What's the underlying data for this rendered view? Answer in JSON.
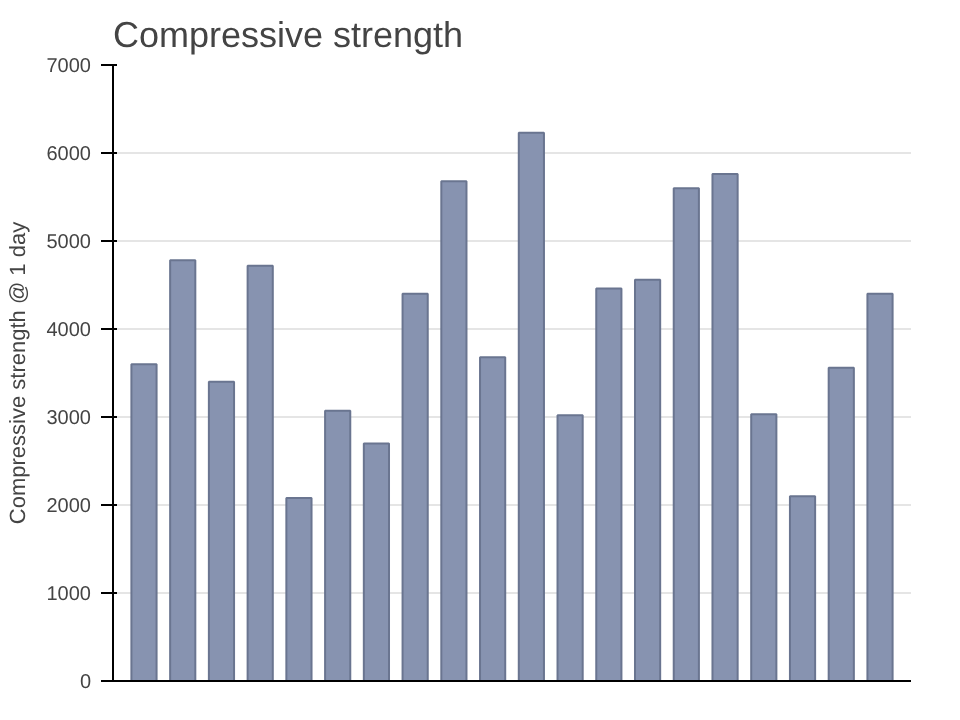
{
  "chart_data": {
    "type": "bar",
    "title": "Compressive strength",
    "ylabel": "Compressive strength @ 1 day",
    "categories": [
      null,
      null,
      null,
      null,
      null,
      null,
      null,
      null,
      null,
      null,
      null,
      null,
      null,
      null,
      null,
      null,
      null,
      null,
      null,
      null
    ],
    "values": [
      3600,
      4780,
      3400,
      4720,
      2080,
      3070,
      2700,
      4400,
      5680,
      3680,
      6230,
      3020,
      4460,
      4560,
      5600,
      5760,
      3030,
      2100,
      3560,
      4400
    ],
    "color": "#8793b0",
    "ylim": [
      0,
      7000
    ],
    "yticks": [
      0,
      1000,
      2000,
      3000,
      4000,
      5000,
      6000,
      7000
    ],
    "grid": "y"
  }
}
